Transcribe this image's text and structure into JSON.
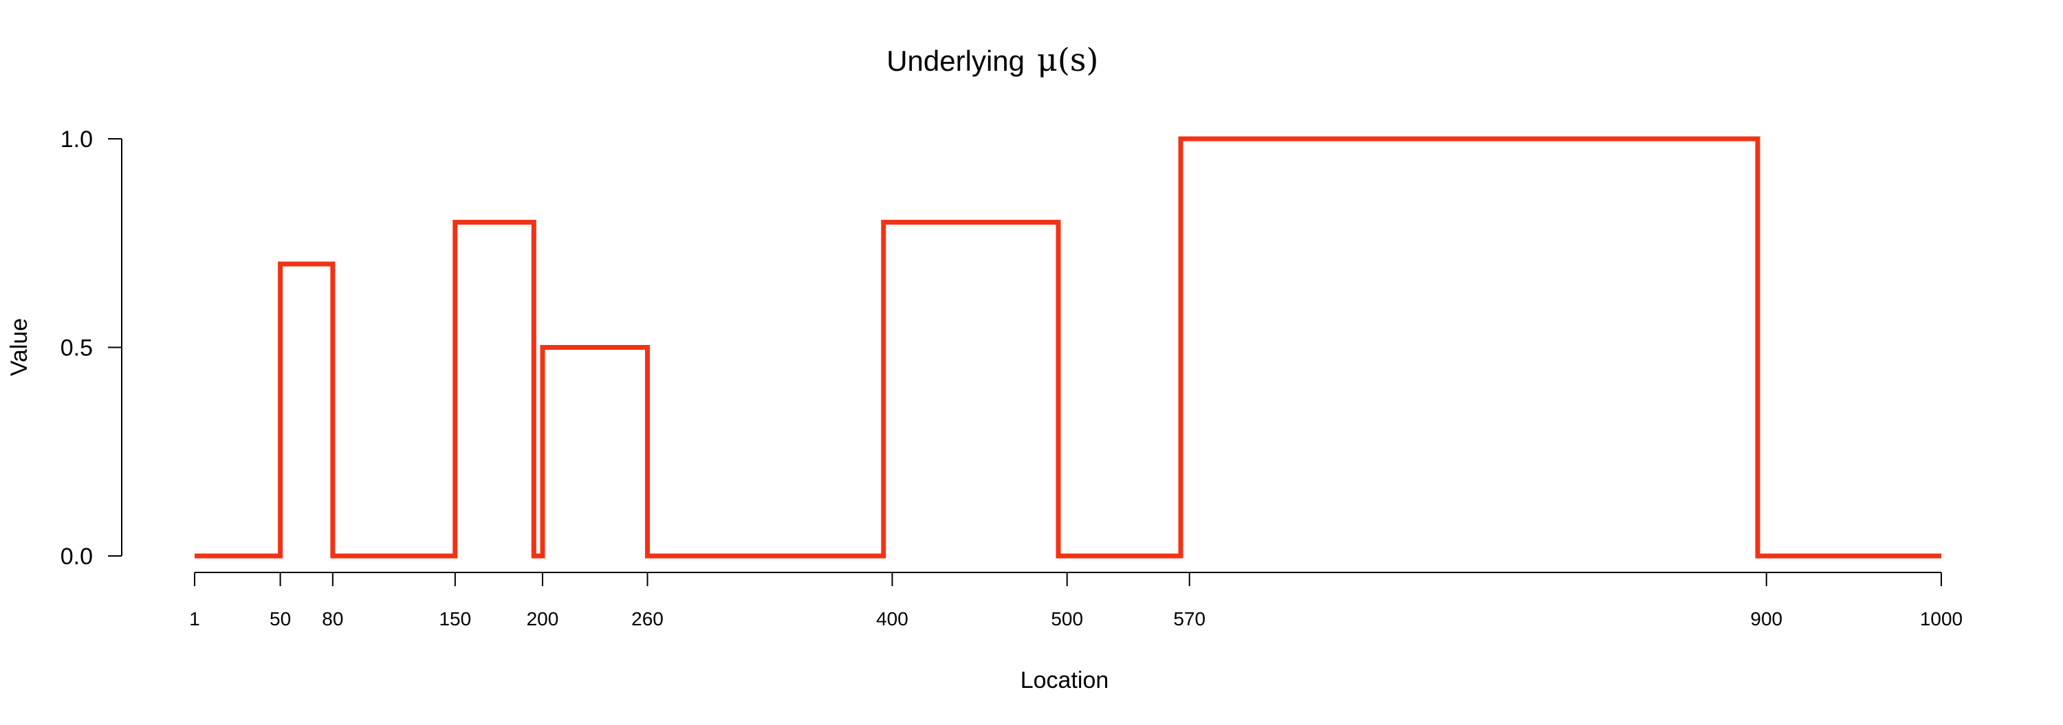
{
  "chart_data": {
    "type": "line",
    "title_prefix": "Underlying",
    "title_math": "μ(s)",
    "xlabel": "Location",
    "ylabel": "Value",
    "xlim": [
      1,
      1000
    ],
    "ylim": [
      0,
      1
    ],
    "x_ticks": [
      1,
      50,
      80,
      150,
      200,
      260,
      400,
      500,
      570,
      900,
      1000
    ],
    "x_tick_labels": [
      "1",
      "50",
      "80",
      "150",
      "200",
      "260",
      "400",
      "500",
      "570",
      "900",
      "1000"
    ],
    "y_ticks": [
      0,
      0.5,
      1
    ],
    "y_tick_labels": [
      "0.0",
      "0.5",
      "1.0"
    ],
    "grid": false,
    "legend": "none",
    "series": [
      {
        "color": "#f03316",
        "style": "piecewise-constant",
        "x": [
          1,
          50,
          50,
          80,
          80,
          150,
          150,
          195,
          195,
          200,
          200,
          260,
          260,
          395,
          395,
          495,
          495,
          565,
          565,
          895,
          895,
          1000
        ],
        "y": [
          0,
          0,
          0.7,
          0.7,
          0,
          0,
          0.8,
          0.8,
          0,
          0,
          0.5,
          0.5,
          0,
          0,
          0.8,
          0.8,
          0,
          0,
          1,
          1,
          0,
          0
        ]
      }
    ]
  }
}
